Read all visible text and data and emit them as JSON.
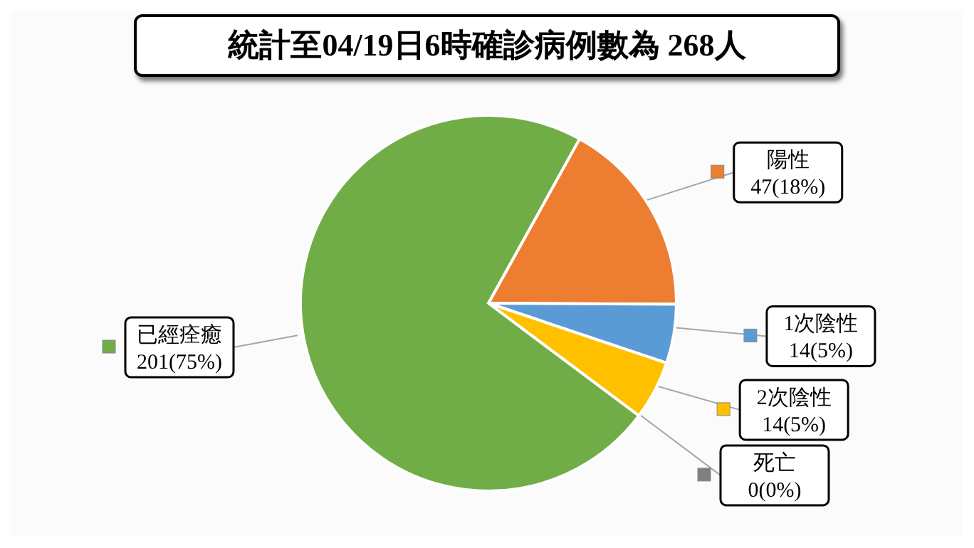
{
  "chart_data": {
    "type": "pie",
    "title": "統計至04/19日6時確診病例數為 268人",
    "categories": [
      "陽性",
      "1次陰性",
      "2次陰性",
      "死亡",
      "已經痊癒"
    ],
    "values": [
      47,
      14,
      14,
      0,
      201
    ],
    "colors": [
      "#ed7d31",
      "#5b9bd5",
      "#ffc000",
      "#7f7f7f",
      "#70ad47"
    ],
    "value_labels": [
      "47(18%)",
      "14(5%)",
      "14(5%)",
      "0(0%)",
      "201(75%)"
    ],
    "legend": "right"
  }
}
